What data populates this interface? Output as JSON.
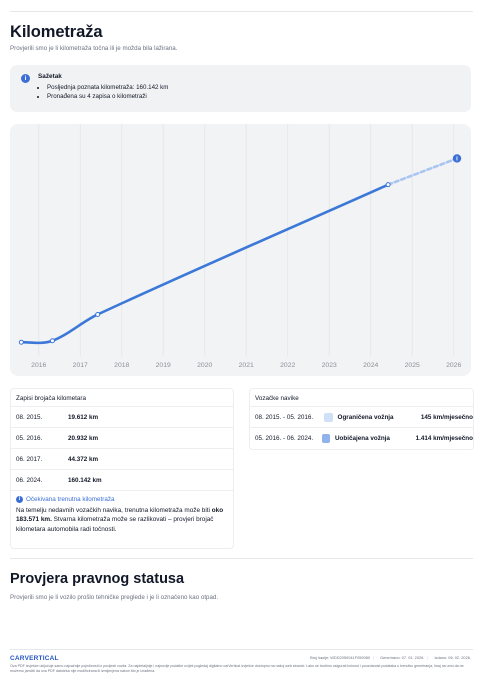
{
  "header": {
    "title": "Kilometraža",
    "subtitle": "Provjerili smo je li kilometraža točna ili je možda bila lažirana."
  },
  "summary": {
    "icon": "info-icon",
    "title": "Sažetak",
    "items": [
      "Posljednja poznata kilometraža: 160.142 km",
      "Pronađena su 4 zapisa o kilometraži"
    ]
  },
  "chart_data": {
    "type": "line",
    "x_ticks": [
      "2016",
      "2017",
      "2018",
      "2019",
      "2020",
      "2021",
      "2022",
      "2023",
      "2024",
      "2025",
      "2026"
    ],
    "series": [
      {
        "style": "solid",
        "points": [
          {
            "x": 2015.58,
            "y": 19612
          },
          {
            "x": 2016.33,
            "y": 20932
          },
          {
            "x": 2017.42,
            "y": 44372
          },
          {
            "x": 2024.42,
            "y": 160142
          }
        ]
      },
      {
        "style": "dashed",
        "points": [
          {
            "x": 2024.42,
            "y": 160142
          },
          {
            "x": 2026.08,
            "y": 183571
          }
        ]
      }
    ],
    "xlim": [
      2015.5,
      2026.2
    ],
    "ylim": [
      10000,
      200000
    ],
    "grid": "vertical",
    "colors": {
      "line": "#3b78d8",
      "projection": "#a9c6f0",
      "badge": "#3b6fd6"
    }
  },
  "records": {
    "title": "Zapisi brojača kilometara",
    "rows": [
      {
        "date": "08. 2015.",
        "km": "19.612 km"
      },
      {
        "date": "05. 2016.",
        "km": "20.932 km"
      },
      {
        "date": "06. 2017.",
        "km": "44.372 km"
      },
      {
        "date": "06. 2024.",
        "km": "160.142 km"
      }
    ],
    "note_title": "Očekivana trenutna kilometraža",
    "note_pre": "Na temelju nedavnih vozačkih navika, trenutna kilometraža može biti ",
    "note_bold": "oko 183.571 km.",
    "note_post": " Stvarna kilometraža može se razlikovati – provjeri brojač kilometara automobila radi točnosti."
  },
  "habits": {
    "title": "Vozačke navike",
    "rows": [
      {
        "period": "08. 2015. - 05. 2016.",
        "label": "Ograničena vožnja",
        "speed": "145 km/mjesečno",
        "color": "#cfe0f7"
      },
      {
        "period": "05. 2016. - 06. 2024.",
        "label": "Uobičajena vožnja",
        "speed": "1.414 km/mjesečno",
        "color": "#8fb3ea"
      }
    ]
  },
  "legal": {
    "title": "Provjera pravnog statusa",
    "subtitle": "Provjerili smo je li vozilo prošlo tehničke preglede i je li označeno kao otpad."
  },
  "footer": {
    "logo": "CARVERTICAL",
    "report_no": "Broj šasije: WDD2050041F059080",
    "generated": "Generirano: 07. 01. 2026.",
    "issued": "Izdano: 06. 02. 2026.",
    "disclaimer": "Ova PDF izvješće uključuje samo najvažnije pojedinosti iz povijesti vozila. Za najdetaljnije i najnovije podatke uvijek pogledaj digitalno carVertical izvješće dostupno na našoj web stranici. Lako se trudimo osigurati točnost i pouzdanost podataka u trenutku generiranja, imaj na umu da ne možemo jamčiti da ova PDF datoteka nije modificirana ili izmijenjena nakon što je izrađena."
  }
}
